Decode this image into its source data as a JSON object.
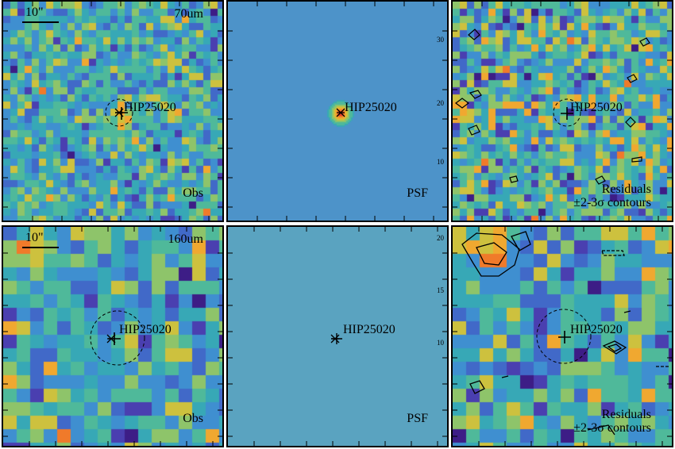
{
  "target": "HIP25020",
  "rows": [
    {
      "band": "70um",
      "scalebar": "10\"",
      "labels": {
        "obs": "Obs",
        "psf": "PSF",
        "residuals": "Residuals",
        "contours": "±2-3σ contours"
      },
      "psf_axis_ticks": [
        "30",
        "20",
        "10"
      ]
    },
    {
      "band": "160um",
      "scalebar": "10\"",
      "labels": {
        "obs": "Obs",
        "psf": "PSF",
        "residuals": "Residuals",
        "contours": "±2-3σ contours"
      },
      "psf_axis_ticks": [
        "20",
        "15",
        "10"
      ]
    }
  ],
  "colors": {
    "colormap": [
      "#3d1d86",
      "#4a3fb0",
      "#4169c8",
      "#3f8fd0",
      "#37a8b6",
      "#4fb99a",
      "#8ec46a",
      "#cdc13e",
      "#f0a830",
      "#f07a2a",
      "#e53b2a"
    ],
    "psf_background": "#4d93c9",
    "psf_background_160": "#5aa3c0"
  }
}
